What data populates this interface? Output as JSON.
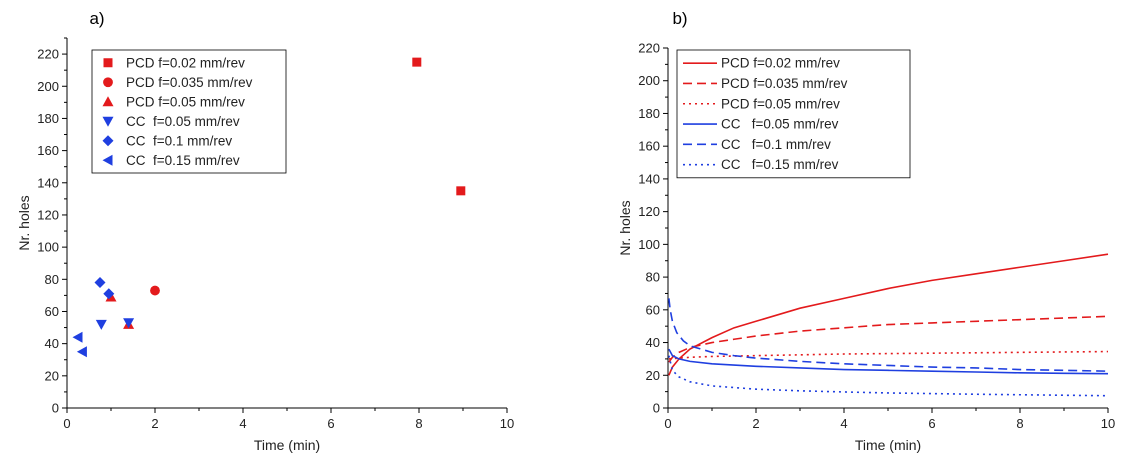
{
  "chart_data": [
    {
      "type": "scatter",
      "panel_label": "a)",
      "xlabel": "Time (min)",
      "ylabel": "Nr. holes",
      "xlim": [
        0,
        10
      ],
      "ylim": [
        0,
        230
      ],
      "xticks": [
        0,
        2,
        4,
        6,
        8,
        10
      ],
      "yticks": [
        0,
        20,
        40,
        60,
        80,
        100,
        120,
        140,
        160,
        180,
        200,
        220
      ],
      "legend_position": "top-left",
      "series": [
        {
          "name": "PCD f=0.02 mm/rev",
          "marker": "square",
          "color": "#e31a1c",
          "points": [
            [
              7.95,
              215
            ],
            [
              8.95,
              135
            ]
          ]
        },
        {
          "name": "PCD f=0.035 mm/rev",
          "marker": "circle",
          "color": "#e31a1c",
          "points": [
            [
              2.0,
              73
            ]
          ]
        },
        {
          "name": "PCD f=0.05 mm/rev",
          "marker": "triangle-up",
          "color": "#e31a1c",
          "points": [
            [
              1.0,
              69
            ],
            [
              1.4,
              52
            ]
          ]
        },
        {
          "name": "CC  f=0.05 mm/rev",
          "marker": "triangle-down",
          "color": "#1f3fe0",
          "points": [
            [
              0.78,
              52
            ],
            [
              1.4,
              53
            ]
          ]
        },
        {
          "name": "CC  f=0.1 mm/rev",
          "marker": "diamond",
          "color": "#1f3fe0",
          "points": [
            [
              0.75,
              78
            ],
            [
              0.95,
              71
            ]
          ]
        },
        {
          "name": "CC  f=0.15 mm/rev",
          "marker": "triangle-left",
          "color": "#1f3fe0",
          "points": [
            [
              0.25,
              44
            ],
            [
              0.35,
              35
            ]
          ]
        }
      ]
    },
    {
      "type": "line",
      "panel_label": "b)",
      "xlabel": "Time (min)",
      "ylabel": "Nr. holes",
      "xlim": [
        0,
        10
      ],
      "ylim": [
        0,
        220
      ],
      "xticks": [
        0,
        2,
        4,
        6,
        8,
        10
      ],
      "yticks": [
        0,
        20,
        40,
        60,
        80,
        100,
        120,
        140,
        160,
        180,
        200,
        220
      ],
      "legend_position": "top-left",
      "series": [
        {
          "name": "PCD f=0.02 mm/rev",
          "style": "solid",
          "color": "#e31a1c",
          "x": [
            0.02,
            0.1,
            0.25,
            0.5,
            1,
            1.5,
            2,
            3,
            4,
            5,
            6,
            7,
            8,
            9,
            10
          ],
          "y": [
            20,
            25,
            30,
            36,
            43,
            49,
            53,
            61,
            67,
            73,
            78,
            82,
            86,
            90,
            94
          ]
        },
        {
          "name": "PCD f=0.035 mm/rev",
          "style": "dashed",
          "color": "#e31a1c",
          "x": [
            0.02,
            0.1,
            0.25,
            0.5,
            1,
            1.5,
            2,
            3,
            4,
            5,
            6,
            7,
            8,
            9,
            10
          ],
          "y": [
            28,
            31,
            34,
            37,
            40,
            42,
            44,
            47,
            49,
            51,
            52,
            53,
            54,
            55,
            56
          ]
        },
        {
          "name": "PCD f=0.05 mm/rev",
          "style": "dotted",
          "color": "#e31a1c",
          "x": [
            0.02,
            0.5,
            1,
            2,
            4,
            6,
            8,
            10
          ],
          "y": [
            30,
            31,
            31.5,
            32,
            33,
            33.5,
            34,
            34.5
          ]
        },
        {
          "name": "CC   f=0.05 mm/rev",
          "style": "solid",
          "color": "#1f3fe0",
          "x": [
            0.02,
            0.1,
            0.25,
            0.5,
            1,
            2,
            3,
            4,
            5,
            6,
            7,
            8,
            9,
            10
          ],
          "y": [
            36,
            32,
            30,
            28.5,
            27,
            25.5,
            24.5,
            23.5,
            23,
            22.5,
            22,
            21.5,
            21.2,
            21
          ]
        },
        {
          "name": "CC   f=0.1 mm/rev",
          "style": "dashed",
          "color": "#1f3fe0",
          "x": [
            0.02,
            0.05,
            0.1,
            0.2,
            0.35,
            0.5,
            1,
            1.5,
            2,
            3,
            4,
            5,
            6,
            7,
            8,
            9,
            10
          ],
          "y": [
            67,
            60,
            53,
            46,
            41,
            38,
            34,
            32,
            30.5,
            28.5,
            27,
            26,
            25,
            24.5,
            23.5,
            23,
            22.5
          ]
        },
        {
          "name": "CC   f=0.15 mm/rev",
          "style": "dotted",
          "color": "#1f3fe0",
          "x": [
            0.02,
            0.1,
            0.25,
            0.5,
            1,
            2,
            3,
            4,
            5,
            6,
            7,
            8,
            9,
            10
          ],
          "y": [
            32,
            23,
            19,
            16,
            13.5,
            11.5,
            10.5,
            9.8,
            9.2,
            8.8,
            8.4,
            8.1,
            7.8,
            7.5
          ]
        }
      ]
    }
  ]
}
